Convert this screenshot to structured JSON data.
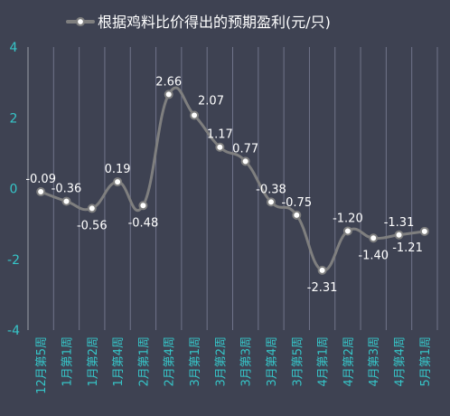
{
  "chart_data": {
    "type": "line",
    "title": "",
    "xlabel": "",
    "ylabel": "",
    "legend": {
      "position": "top",
      "entries": [
        "根据鸡料比价得出的预期盈利(元/只)"
      ]
    },
    "categories": [
      "12月第5周",
      "1月第1周",
      "1月第2周",
      "1月第4周",
      "2月第1周",
      "2月第4周",
      "3月第1周",
      "3月第2周",
      "3月第3周",
      "3月第4周",
      "3月第5周",
      "4月第1周",
      "4月第2周",
      "4月第3周",
      "4月第4周",
      "5月第1周"
    ],
    "series": [
      {
        "name": "根据鸡料比价得出的预期盈利(元/只)",
        "values": [
          -0.09,
          -0.36,
          -0.56,
          0.19,
          -0.48,
          2.66,
          2.07,
          1.17,
          0.77,
          -0.38,
          -0.75,
          -2.31,
          -1.2,
          -1.4,
          -1.31,
          -1.21
        ],
        "labels": [
          "-0.09",
          "-0.36",
          "-0.56",
          "0.19",
          "-0.48",
          "2.66",
          "2.07",
          "1.17",
          "0.77",
          "-0.38",
          "-0.75",
          "-2.31",
          "-1.20",
          "-1.40",
          "-1.31",
          "-1.21"
        ],
        "label_position": [
          "above",
          "above",
          "below",
          "above",
          "below",
          "above",
          "right",
          "above",
          "above",
          "above",
          "above",
          "below",
          "above",
          "below",
          "above",
          "left-below"
        ]
      }
    ],
    "ylim": [
      -4,
      4
    ],
    "yticks": [
      -4,
      -2,
      0,
      2,
      4
    ],
    "ytick_labels": [
      "-4",
      "-2",
      "0",
      "2",
      "4"
    ],
    "grid": {
      "horizontal": false,
      "vertical": true
    },
    "style": {
      "background": "#3e4252",
      "line_color": "#7f7f7f",
      "marker_fill": "#ffffff",
      "marker_stroke": "#7f7f7f",
      "tick_color": "#36c5c8",
      "label_color": "#ffffff",
      "grid_color": "#70748a",
      "axis_color": "#9a9ea8"
    }
  }
}
